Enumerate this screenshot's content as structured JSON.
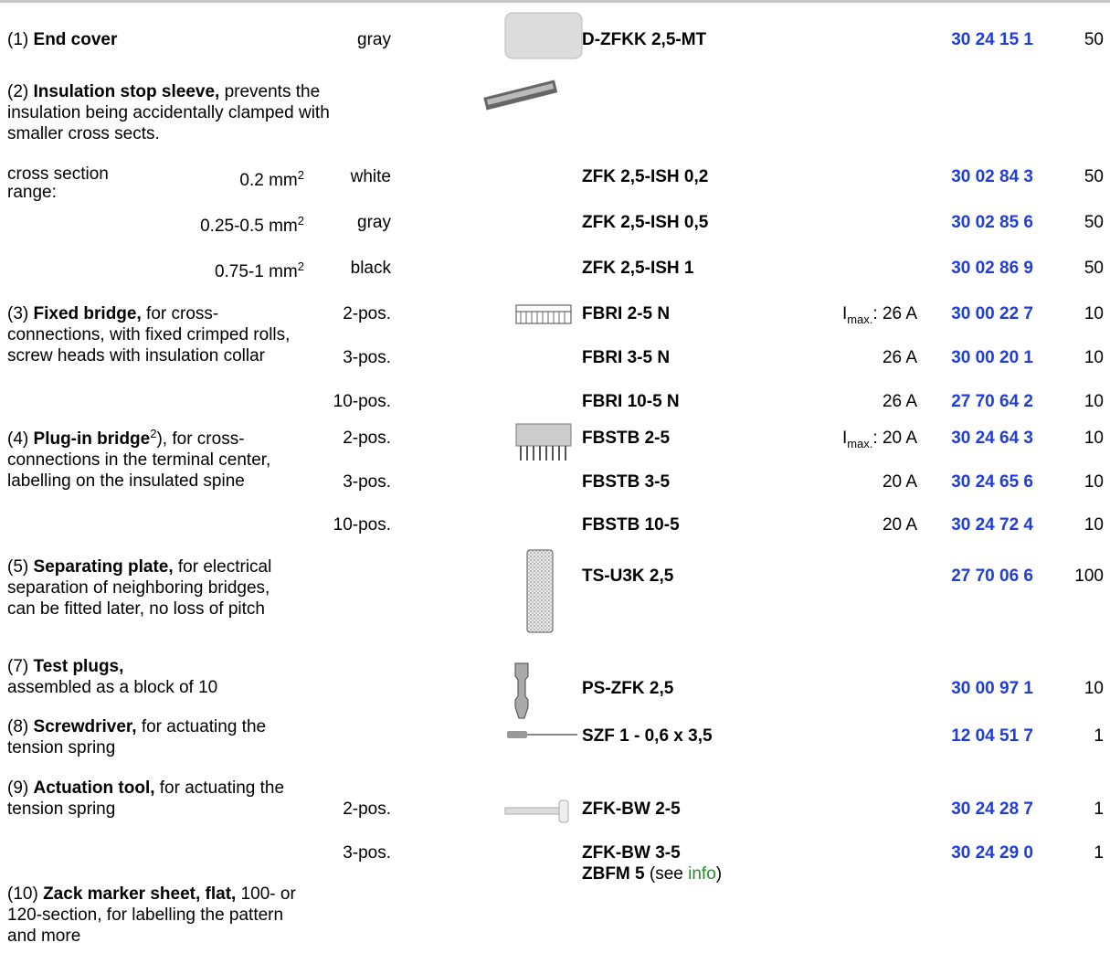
{
  "items": [
    {
      "number": "(1)",
      "name": "End cover",
      "variants": [
        {
          "color": "gray",
          "type": "D-ZFKK 2,5-MT",
          "order": "30 24 15 1",
          "pack": "50"
        }
      ]
    },
    {
      "number": "(2)",
      "name": "Insulation stop sleeve,",
      "description": "prevents the insulation being accidentally clamped with smaller cross sects.",
      "range_label": "cross section range:",
      "variants": [
        {
          "size": "0.2 mm",
          "size_sup": "2",
          "color": "white",
          "type": "ZFK 2,5-ISH 0,2",
          "order": "30 02 84 3",
          "pack": "50"
        },
        {
          "size": "0.25-0.5 mm",
          "size_sup": "2",
          "color": "gray",
          "type": "ZFK 2,5-ISH 0,5",
          "order": "30 02 85 6",
          "pack": "50"
        },
        {
          "size": "0.75-1 mm",
          "size_sup": "2",
          "color": "black",
          "type": "ZFK 2,5-ISH 1",
          "order": "30 02 86 9",
          "pack": "50"
        }
      ]
    },
    {
      "number": "(3)",
      "name": "Fixed bridge,",
      "description": "for cross-connections, with fixed crimped rolls, screw heads with insulation collar",
      "variants": [
        {
          "label": "2-pos.",
          "type": "FBRI 2-5 N",
          "current_symbol": "I",
          "current_sub": "max.",
          "current": ": 26 A",
          "order": "30 00 22 7",
          "pack": "10"
        },
        {
          "label": "3-pos.",
          "type": "FBRI 3-5 N",
          "current": "26 A",
          "order": "30 00 20 1",
          "pack": "10"
        },
        {
          "label": "10-pos.",
          "type": "FBRI 10-5 N",
          "current": "26 A",
          "order": "27 70 64 2",
          "pack": "10"
        }
      ]
    },
    {
      "number": "(4)",
      "name": "Plug-in bridge",
      "footnote": "2",
      "description": "), for cross-connections in the terminal center, labelling on the insulated spine",
      "variants": [
        {
          "label": "2-pos.",
          "type": "FBSTB 2-5",
          "current_symbol": "I",
          "current_sub": "max.",
          "current": ": 20 A",
          "order": "30 24 64 3",
          "pack": "10"
        },
        {
          "label": "3-pos.",
          "type": "FBSTB 3-5",
          "current": "20 A",
          "order": "30 24 65 6",
          "pack": "10"
        },
        {
          "label": "10-pos.",
          "type": "FBSTB 10-5",
          "current": "20 A",
          "order": "30 24 72 4",
          "pack": "10"
        }
      ]
    },
    {
      "number": "(5)",
      "name": "Separating plate,",
      "description": "for electrical separation of neighboring bridges, can be fitted later, no loss of pitch",
      "variants": [
        {
          "type": "TS-U3K 2,5",
          "order": "27 70 06 6",
          "pack": "100"
        }
      ]
    },
    {
      "number": "(7)",
      "name": "Test plugs,",
      "description": "assembled as a block of 10",
      "variants": [
        {
          "type": "PS-ZFK 2,5",
          "order": "30 00 97 1",
          "pack": "10"
        }
      ]
    },
    {
      "number": "(8)",
      "name": "Screwdriver,",
      "description": "for actuating the tension spring",
      "variants": [
        {
          "type": "SZF 1 - 0,6 x 3,5",
          "order": "12 04 51 7",
          "pack": "1"
        }
      ]
    },
    {
      "number": "(9)",
      "name": "Actuation tool,",
      "description": "for actuating the tension spring",
      "variants": [
        {
          "label": "2-pos.",
          "type": "ZFK-BW 2-5",
          "order": "30 24 28 7",
          "pack": "1"
        },
        {
          "label": "3-pos.",
          "type": "ZFK-BW 3-5",
          "order": "30 24 29 0",
          "pack": "1"
        }
      ]
    },
    {
      "number": "(10)",
      "name": "Zack marker sheet, flat,",
      "description": "100- or 120-section, for labelling the pattern and more",
      "variants": [
        {
          "type": "ZBFM 5",
          "note": "(see",
          "link": "info",
          "note_end": ")"
        }
      ]
    }
  ]
}
